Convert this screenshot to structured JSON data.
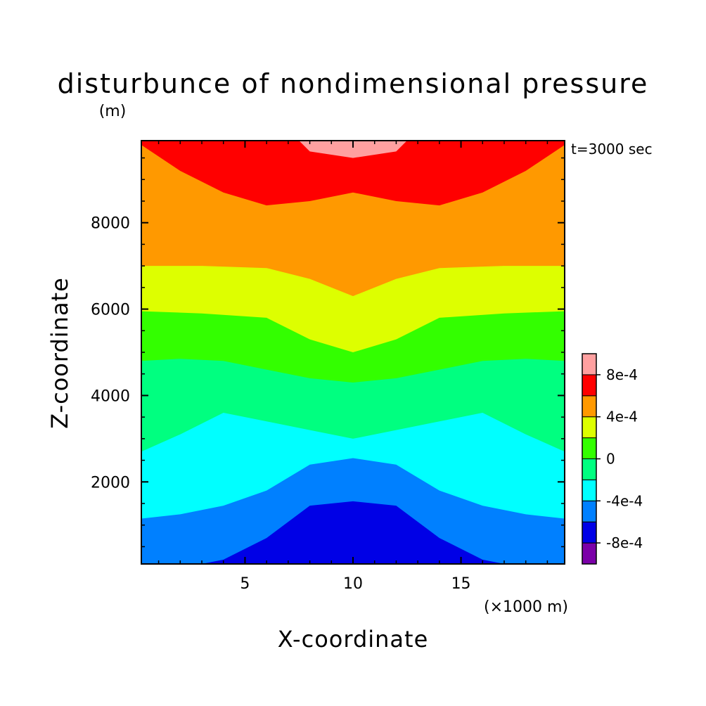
{
  "chart_data": {
    "type": "heatmap",
    "title": "disturbunce of nondimensional pressure",
    "units_note": "(m)",
    "time_label": "t=3000 sec",
    "xlabel": "X-coordinate",
    "x_unit_label": "(×1000 m)",
    "ylabel": "Z-coordinate",
    "xlim": [
      0.2,
      19.8
    ],
    "ylim": [
      100,
      9900
    ],
    "x_ticks": [
      {
        "value": 5,
        "label": "5"
      },
      {
        "value": 10,
        "label": "10"
      },
      {
        "value": 15,
        "label": "15"
      }
    ],
    "y_ticks": [
      {
        "value": 2000,
        "label": "2000"
      },
      {
        "value": 4000,
        "label": "4000"
      },
      {
        "value": 6000,
        "label": "6000"
      },
      {
        "value": 8000,
        "label": "8000"
      }
    ],
    "levels": [
      -0.0012,
      -0.0008,
      -0.0006,
      -0.0004,
      -0.0002,
      0,
      0.0002,
      0.0004,
      0.0006,
      0.0008,
      0.001
    ],
    "colors": [
      "#7b00a8",
      "#0000e6",
      "#0080ff",
      "#00ffff",
      "#00ff80",
      "#33ff00",
      "#ddff00",
      "#ff9900",
      "#ff0000",
      "#ffa0a0"
    ],
    "colorbar_labels": [
      {
        "value": -0.0008,
        "label": "-8e-4"
      },
      {
        "value": -0.0004,
        "label": "-4e-4"
      },
      {
        "value": 0,
        "label": "0"
      },
      {
        "value": 0.0004,
        "label": "4e-4"
      },
      {
        "value": 0.0008,
        "label": "8e-4"
      }
    ],
    "band_boundaries": [
      {
        "between": [
          "#0000e6",
          "#0080ff"
        ],
        "z": [
          {
            "x": 0.2,
            "z": 0
          },
          {
            "x": 2,
            "z": 0
          },
          {
            "x": 4,
            "z": 200
          },
          {
            "x": 6,
            "z": 700
          },
          {
            "x": 8,
            "z": 1450
          },
          {
            "x": 10,
            "z": 1550
          },
          {
            "x": 12,
            "z": 1450
          },
          {
            "x": 14,
            "z": 700
          },
          {
            "x": 16,
            "z": 200
          },
          {
            "x": 18,
            "z": 0
          },
          {
            "x": 19.8,
            "z": 0
          }
        ]
      },
      {
        "between": [
          "#0080ff",
          "#00ffff"
        ],
        "z": [
          {
            "x": 0.2,
            "z": 1150
          },
          {
            "x": 2,
            "z": 1250
          },
          {
            "x": 4,
            "z": 1450
          },
          {
            "x": 6,
            "z": 1800
          },
          {
            "x": 8,
            "z": 2400
          },
          {
            "x": 10,
            "z": 2550
          },
          {
            "x": 12,
            "z": 2400
          },
          {
            "x": 14,
            "z": 1800
          },
          {
            "x": 16,
            "z": 1450
          },
          {
            "x": 18,
            "z": 1250
          },
          {
            "x": 19.8,
            "z": 1150
          }
        ]
      },
      {
        "between": [
          "#00ffff",
          "#00ff80"
        ],
        "z": [
          {
            "x": 0.2,
            "z": 2700
          },
          {
            "x": 2,
            "z": 3100
          },
          {
            "x": 4,
            "z": 3600
          },
          {
            "x": 6,
            "z": 3400
          },
          {
            "x": 8,
            "z": 3200
          },
          {
            "x": 10,
            "z": 3000
          },
          {
            "x": 12,
            "z": 3200
          },
          {
            "x": 14,
            "z": 3400
          },
          {
            "x": 16,
            "z": 3600
          },
          {
            "x": 18,
            "z": 3100
          },
          {
            "x": 19.8,
            "z": 2700
          }
        ]
      },
      {
        "between": [
          "#00ff80",
          "#33ff00"
        ],
        "z": [
          {
            "x": 0.2,
            "z": 4800
          },
          {
            "x": 2,
            "z": 4850
          },
          {
            "x": 4,
            "z": 4800
          },
          {
            "x": 6,
            "z": 4600
          },
          {
            "x": 8,
            "z": 4400
          },
          {
            "x": 10,
            "z": 4300
          },
          {
            "x": 12,
            "z": 4400
          },
          {
            "x": 14,
            "z": 4600
          },
          {
            "x": 16,
            "z": 4800
          },
          {
            "x": 18,
            "z": 4850
          },
          {
            "x": 19.8,
            "z": 4800
          }
        ]
      },
      {
        "between": [
          "#33ff00",
          "#ddff00"
        ],
        "z": [
          {
            "x": 0.2,
            "z": 5950
          },
          {
            "x": 3,
            "z": 5900
          },
          {
            "x": 6,
            "z": 5800
          },
          {
            "x": 8,
            "z": 5300
          },
          {
            "x": 10,
            "z": 5000
          },
          {
            "x": 12,
            "z": 5300
          },
          {
            "x": 14,
            "z": 5800
          },
          {
            "x": 17,
            "z": 5900
          },
          {
            "x": 19.8,
            "z": 5950
          }
        ]
      },
      {
        "between": [
          "#ddff00",
          "#ff9900"
        ],
        "z": [
          {
            "x": 0.2,
            "z": 7000
          },
          {
            "x": 3,
            "z": 7000
          },
          {
            "x": 6,
            "z": 6950
          },
          {
            "x": 8,
            "z": 6700
          },
          {
            "x": 10,
            "z": 6300
          },
          {
            "x": 12,
            "z": 6700
          },
          {
            "x": 14,
            "z": 6950
          },
          {
            "x": 17,
            "z": 7000
          },
          {
            "x": 19.8,
            "z": 7000
          }
        ]
      },
      {
        "between": [
          "#ff9900",
          "#ff0000"
        ],
        "z": [
          {
            "x": 0.2,
            "z": 9800
          },
          {
            "x": 2,
            "z": 9200
          },
          {
            "x": 4,
            "z": 8700
          },
          {
            "x": 6,
            "z": 8400
          },
          {
            "x": 8,
            "z": 8500
          },
          {
            "x": 10,
            "z": 8700
          },
          {
            "x": 12,
            "z": 8500
          },
          {
            "x": 14,
            "z": 8400
          },
          {
            "x": 16,
            "z": 8700
          },
          {
            "x": 18,
            "z": 9200
          },
          {
            "x": 19.8,
            "z": 9800
          }
        ]
      },
      {
        "between": [
          "#ff0000",
          "#ffa0a0"
        ],
        "z": [
          {
            "x": 7.5,
            "z": 9900
          },
          {
            "x": 8,
            "z": 9650
          },
          {
            "x": 10,
            "z": 9500
          },
          {
            "x": 12,
            "z": 9650
          },
          {
            "x": 12.5,
            "z": 9900
          }
        ]
      }
    ]
  }
}
